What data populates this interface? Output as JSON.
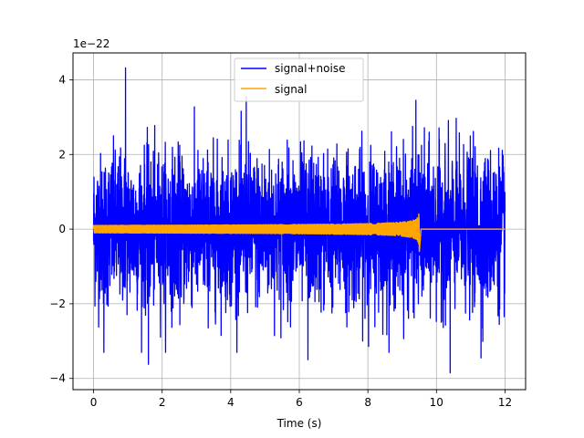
{
  "chart_data": {
    "type": "line",
    "xlabel": "Time (s)",
    "ylabel": "",
    "y_offset_label": "1e−22",
    "xlim": [
      -0.6,
      12.6
    ],
    "ylim": [
      -4.3,
      4.72
    ],
    "y_scale": 1e-22,
    "xticks": [
      0,
      2,
      4,
      6,
      8,
      10,
      12
    ],
    "xtick_labels": [
      "0",
      "2",
      "4",
      "6",
      "8",
      "10",
      "12"
    ],
    "yticks": [
      -4,
      -2,
      0,
      2,
      4
    ],
    "ytick_labels": [
      "−4",
      "−2",
      "0",
      "2",
      "4"
    ],
    "grid": true,
    "legend_position": "upper center",
    "series": [
      {
        "name": "signal+noise",
        "color": "#0000ff",
        "description_kind": "noise",
        "t_start": 0,
        "t_end": 12,
        "typical_amplitude": 1.0,
        "extreme_points": [
          {
            "x": 0.93,
            "y": 4.32
          },
          {
            "x": 4.45,
            "y": 3.55
          },
          {
            "x": 9.4,
            "y": 3.45
          },
          {
            "x": 1.6,
            "y": -3.62
          },
          {
            "x": 0.3,
            "y": -3.3
          },
          {
            "x": 6.25,
            "y": -3.5
          },
          {
            "x": 10.4,
            "y": -3.85
          },
          {
            "x": 11.3,
            "y": -3.45
          }
        ]
      },
      {
        "name": "signal",
        "color": "#ffa500",
        "description_kind": "chirp",
        "t_start": 0,
        "t_merger": 9.5,
        "t_end": 12,
        "start_amplitude": 0.1,
        "peak_amplitude": 0.55,
        "peak_min": -0.6
      }
    ]
  }
}
